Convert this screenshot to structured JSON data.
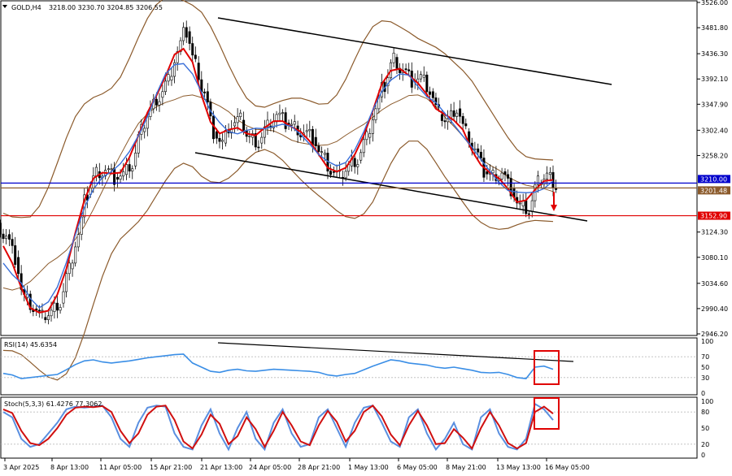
{
  "header": {
    "symbol_label": "GOLD,H4",
    "ohlc_label": "3218.00 3230.70 3204.85 3206.55",
    "rsi_label": "RSI(14) 45.6354",
    "stoch_label": "Stoch(5,3,3) 61.4276 77.3062"
  },
  "colors": {
    "bull_candle": "#ffffff",
    "bear_candle": "#000000",
    "ma_fast": "#e00000",
    "ma_slow": "#3a6fd8",
    "bollinger": "#8b5a2b",
    "channel": "#000000",
    "level_red": "#e00000",
    "level_blue": "#0000cc",
    "level_brown": "#8b5a2b",
    "rsi_line": "#3a8ee6",
    "stoch_main": "#5a8fe0",
    "stoch_signal": "#d01010",
    "highlight_box": "#e00000"
  },
  "chart_data": {
    "type": "line",
    "price_axis_ticks": [
      "3526.00",
      "3481.80",
      "3436.30",
      "3392.10",
      "3347.90",
      "3302.40",
      "3258.20",
      "3210.00",
      "3201.48",
      "3152.90",
      "3124.30",
      "3080.10",
      "3034.60",
      "2990.40",
      "2946.20"
    ],
    "price_ylim": [
      2946.2,
      3526.0
    ],
    "time_axis_ticks": [
      "3 Apr 2025",
      "8 Apr 13:00",
      "11 Apr 05:00",
      "15 Apr 21:00",
      "21 Apr 13:00",
      "24 Apr 05:00",
      "28 Apr 21:00",
      "1 May 13:00",
      "6 May 05:00",
      "8 May 21:00",
      "13 May 13:00",
      "16 May 05:00"
    ],
    "levels": [
      {
        "value": 3210.0,
        "label": "3210.00",
        "color": "#0000cc"
      },
      {
        "value": 3201.48,
        "label": "3201.48",
        "color": "#8b5a2b"
      },
      {
        "value": 3152.9,
        "label": "3152.90",
        "color": "#e00000"
      }
    ],
    "close_path": [
      3120,
      3080,
      3010,
      2990,
      2975,
      2985,
      3000,
      3060,
      3120,
      3190,
      3230,
      3235,
      3220,
      3225,
      3240,
      3300,
      3340,
      3360,
      3390,
      3440,
      3475,
      3420,
      3370,
      3300,
      3280,
      3310,
      3320,
      3290,
      3280,
      3310,
      3330,
      3315,
      3310,
      3300,
      3290,
      3260,
      3230,
      3220,
      3240,
      3250,
      3290,
      3340,
      3380,
      3430,
      3410,
      3390,
      3395,
      3370,
      3330,
      3320,
      3340,
      3300,
      3270,
      3230,
      3225,
      3230,
      3200,
      3170,
      3160,
      3210,
      3225,
      3206
    ],
    "rsi": {
      "ticks": [
        "100",
        "70",
        "50",
        "30",
        "0"
      ],
      "ylim": [
        0,
        100
      ],
      "values": [
        38,
        35,
        28,
        30,
        32,
        34,
        36,
        45,
        55,
        62,
        64,
        60,
        58,
        60,
        62,
        65,
        68,
        70,
        72,
        74,
        75,
        58,
        50,
        42,
        40,
        44,
        46,
        43,
        42,
        44,
        46,
        45,
        44,
        43,
        42,
        40,
        35,
        33,
        36,
        38,
        45,
        52,
        58,
        64,
        62,
        58,
        56,
        54,
        50,
        48,
        50,
        47,
        44,
        40,
        39,
        40,
        36,
        30,
        28,
        50,
        52,
        46
      ]
    },
    "stoch": {
      "ticks": [
        "100",
        "80",
        "50",
        "20",
        "0"
      ],
      "ylim": [
        0,
        100
      ],
      "main": [
        80,
        70,
        30,
        15,
        20,
        40,
        60,
        85,
        90,
        88,
        90,
        92,
        70,
        30,
        15,
        60,
        88,
        92,
        90,
        40,
        15,
        10,
        55,
        85,
        40,
        10,
        50,
        80,
        30,
        10,
        60,
        85,
        40,
        15,
        20,
        70,
        85,
        50,
        15,
        60,
        88,
        92,
        60,
        25,
        15,
        70,
        85,
        40,
        10,
        30,
        60,
        20,
        10,
        70,
        85,
        40,
        15,
        10,
        30,
        95,
        85,
        65
      ],
      "signal": [
        85,
        78,
        45,
        22,
        18,
        30,
        50,
        75,
        88,
        90,
        89,
        91,
        80,
        45,
        22,
        40,
        75,
        90,
        92,
        65,
        25,
        12,
        38,
        75,
        58,
        20,
        35,
        70,
        48,
        15,
        45,
        80,
        55,
        25,
        18,
        55,
        82,
        62,
        25,
        45,
        80,
        92,
        72,
        38,
        18,
        55,
        82,
        55,
        20,
        22,
        48,
        32,
        12,
        50,
        80,
        55,
        22,
        12,
        22,
        80,
        90,
        77
      ]
    },
    "ma_fast_label": "",
    "ma_slow_label": ""
  }
}
